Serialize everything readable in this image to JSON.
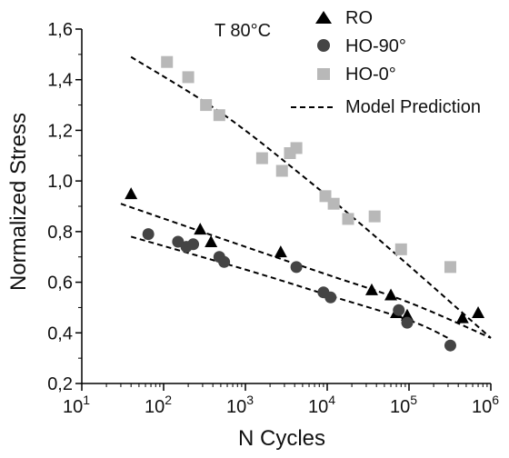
{
  "chart_data": {
    "type": "scatter",
    "annotation": "T 80°C",
    "xlabel": "N Cycles",
    "ylabel": "Normalized Stress",
    "x_scale": "log",
    "xlim": [
      10,
      1000000
    ],
    "ylim": [
      0.2,
      1.6
    ],
    "x_ticks": [
      {
        "value": 10,
        "base": "10",
        "exp": "1"
      },
      {
        "value": 100,
        "base": "10",
        "exp": "2"
      },
      {
        "value": 1000,
        "base": "10",
        "exp": "3"
      },
      {
        "value": 10000,
        "base": "10",
        "exp": "4"
      },
      {
        "value": 100000,
        "base": "10",
        "exp": "5"
      },
      {
        "value": 1000000,
        "base": "10",
        "exp": "6"
      }
    ],
    "y_ticks": [
      {
        "value": 0.2,
        "label": "0,2"
      },
      {
        "value": 0.4,
        "label": "0,4"
      },
      {
        "value": 0.6,
        "label": "0,6"
      },
      {
        "value": 0.8,
        "label": "0,8"
      },
      {
        "value": 1.0,
        "label": "1,0"
      },
      {
        "value": 1.2,
        "label": "1,2"
      },
      {
        "value": 1.4,
        "label": "1,4"
      },
      {
        "value": 1.6,
        "label": "1,6"
      }
    ],
    "grid": false,
    "legend_position": "top-right",
    "series": [
      {
        "name": "RO",
        "marker": "triangle",
        "color": "#000000",
        "points": [
          [
            40,
            0.95
          ],
          [
            280,
            0.81
          ],
          [
            380,
            0.76
          ],
          [
            2700,
            0.72
          ],
          [
            35000,
            0.57
          ],
          [
            60000,
            0.55
          ],
          [
            70000,
            0.48
          ],
          [
            95000,
            0.47
          ],
          [
            450000,
            0.46
          ],
          [
            700000,
            0.48
          ]
        ]
      },
      {
        "name": "HO-90°",
        "marker": "circle",
        "color": "#444444",
        "points": [
          [
            65,
            0.79
          ],
          [
            150,
            0.76
          ],
          [
            190,
            0.74
          ],
          [
            230,
            0.75
          ],
          [
            480,
            0.7
          ],
          [
            550,
            0.68
          ],
          [
            4200,
            0.66
          ],
          [
            9000,
            0.56
          ],
          [
            11000,
            0.54
          ],
          [
            75000,
            0.49
          ],
          [
            95000,
            0.44
          ],
          [
            320000,
            0.35
          ]
        ]
      },
      {
        "name": "HO-0°",
        "marker": "square",
        "color": "#b8b8b8",
        "points": [
          [
            110,
            1.47
          ],
          [
            200,
            1.41
          ],
          [
            330,
            1.3
          ],
          [
            480,
            1.26
          ],
          [
            1600,
            1.09
          ],
          [
            2800,
            1.04
          ],
          [
            3500,
            1.11
          ],
          [
            4200,
            1.13
          ],
          [
            9500,
            0.94
          ],
          [
            12000,
            0.91
          ],
          [
            18000,
            0.85
          ],
          [
            38000,
            0.86
          ],
          [
            80000,
            0.73
          ],
          [
            320000,
            0.66
          ]
        ]
      }
    ],
    "model_prediction": {
      "name": "Model Prediction",
      "style": "dashed",
      "color": "#000000",
      "lines": [
        {
          "points": [
            [
              40,
              1.49
            ],
            [
              500,
              1.27
            ],
            [
              5000,
              1.02
            ],
            [
              50000,
              0.75
            ],
            [
              1000000,
              0.38
            ]
          ]
        },
        {
          "points": [
            [
              30,
              0.91
            ],
            [
              1000,
              0.74
            ],
            [
              10000,
              0.63
            ],
            [
              100000,
              0.52
            ],
            [
              1000000,
              0.38
            ]
          ]
        },
        {
          "points": [
            [
              40,
              0.78
            ],
            [
              1000,
              0.65
            ],
            [
              10000,
              0.55
            ],
            [
              100000,
              0.45
            ],
            [
              300000,
              0.38
            ]
          ]
        }
      ]
    }
  }
}
